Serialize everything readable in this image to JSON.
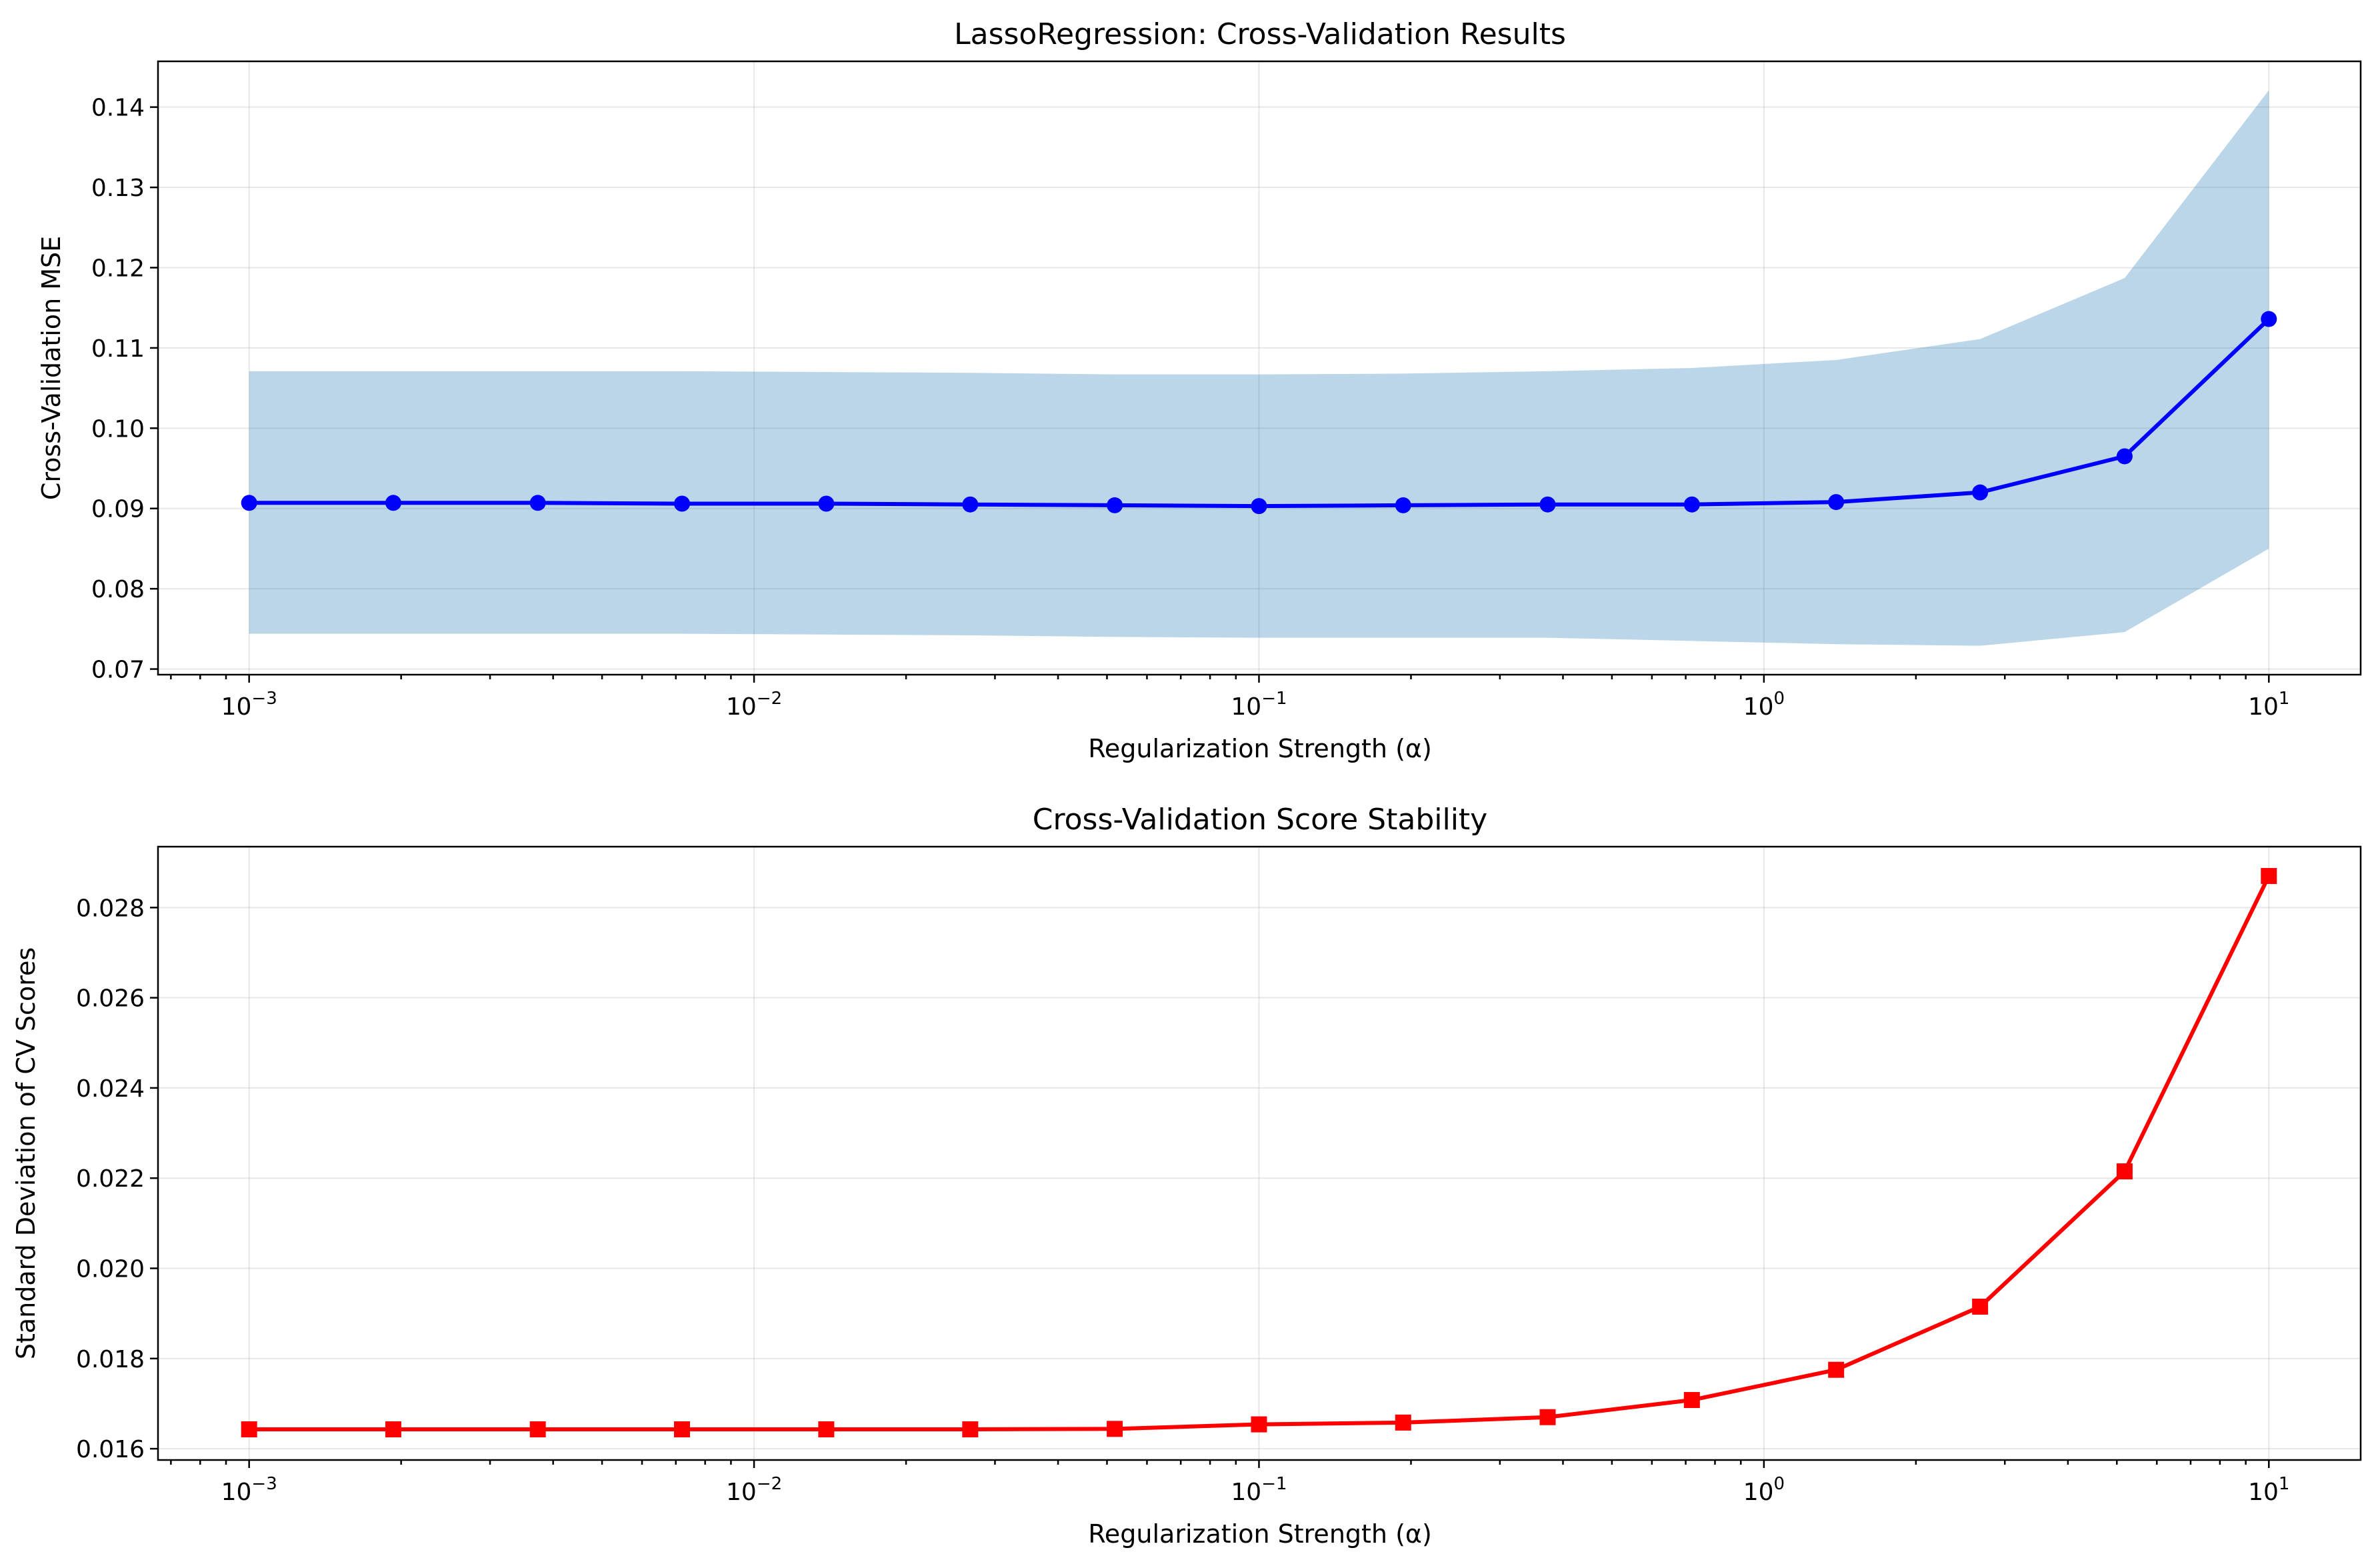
{
  "chart_data": [
    {
      "type": "line",
      "title": "LassoRegression: Cross-Validation Results",
      "xlabel": "Regularization Strength (α)",
      "ylabel": "Cross-Validation MSE",
      "xscale": "log",
      "xlim": [
        0.00066,
        15.2
      ],
      "ylim": [
        0.0693,
        0.1457
      ],
      "grid": true,
      "x_ticks": [
        {
          "value": 0.001,
          "base": "10",
          "exp": "−3"
        },
        {
          "value": 0.01,
          "base": "10",
          "exp": "−2"
        },
        {
          "value": 0.1,
          "base": "10",
          "exp": "−1"
        },
        {
          "value": 1,
          "base": "10",
          "exp": "0"
        },
        {
          "value": 10,
          "base": "10",
          "exp": "1"
        }
      ],
      "y_ticks": [
        "0.07",
        "0.08",
        "0.09",
        "0.10",
        "0.11",
        "0.12",
        "0.13",
        "0.14"
      ],
      "x": [
        0.001,
        0.00193,
        0.00373,
        0.0072,
        0.0139,
        0.0268,
        0.0518,
        0.1,
        0.193,
        0.373,
        0.72,
        1.39,
        2.68,
        5.18,
        10
      ],
      "series": [
        {
          "color": "#0000ff",
          "marker": "circle",
          "values": [
            0.0907,
            0.0907,
            0.0907,
            0.0906,
            0.0906,
            0.0905,
            0.0904,
            0.0903,
            0.0904,
            0.0905,
            0.0905,
            0.0908,
            0.092,
            0.0965,
            0.1136
          ]
        }
      ],
      "band": {
        "color": "#1f77b4",
        "lower": [
          0.0744,
          0.0744,
          0.0744,
          0.0744,
          0.0743,
          0.0742,
          0.074,
          0.0739,
          0.0739,
          0.0739,
          0.0735,
          0.0731,
          0.0729,
          0.0746,
          0.085
        ],
        "upper": [
          0.1071,
          0.1071,
          0.1071,
          0.1071,
          0.107,
          0.1069,
          0.1067,
          0.1067,
          0.1068,
          0.1071,
          0.1075,
          0.1085,
          0.1111,
          0.1187,
          0.1421
        ]
      }
    },
    {
      "type": "line",
      "title": "Cross-Validation Score Stability",
      "xlabel": "Regularization Strength (α)",
      "ylabel": "Standard Deviation of CV Scores",
      "xscale": "log",
      "xlim": [
        0.00066,
        15.2
      ],
      "ylim": [
        0.01575,
        0.02935
      ],
      "grid": true,
      "x_ticks": [
        {
          "value": 0.001,
          "base": "10",
          "exp": "−3"
        },
        {
          "value": 0.01,
          "base": "10",
          "exp": "−2"
        },
        {
          "value": 0.1,
          "base": "10",
          "exp": "−1"
        },
        {
          "value": 1,
          "base": "10",
          "exp": "0"
        },
        {
          "value": 10,
          "base": "10",
          "exp": "1"
        }
      ],
      "y_ticks": [
        "0.016",
        "0.018",
        "0.020",
        "0.022",
        "0.024",
        "0.026",
        "0.028"
      ],
      "x": [
        0.001,
        0.00193,
        0.00373,
        0.0072,
        0.0139,
        0.0268,
        0.0518,
        0.1,
        0.193,
        0.373,
        0.72,
        1.39,
        2.68,
        5.18,
        10
      ],
      "series": [
        {
          "color": "#ff0000",
          "marker": "square",
          "values": [
            0.01643,
            0.01643,
            0.01643,
            0.01643,
            0.01643,
            0.01643,
            0.01644,
            0.01654,
            0.01658,
            0.0167,
            0.01708,
            0.01775,
            0.01915,
            0.02215,
            0.0287
          ]
        }
      ]
    }
  ]
}
